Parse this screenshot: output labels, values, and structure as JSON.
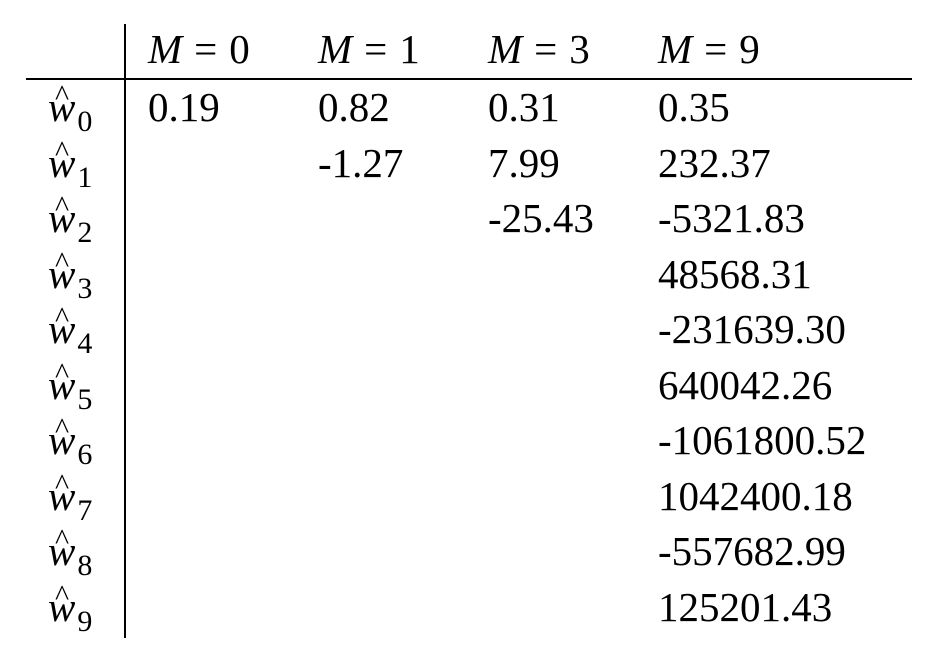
{
  "table": {
    "header": {
      "columns": [
        {
          "var": "M",
          "eq": "=",
          "value": "0"
        },
        {
          "var": "M",
          "eq": "=",
          "value": "1"
        },
        {
          "var": "M",
          "eq": "=",
          "value": "3"
        },
        {
          "var": "M",
          "eq": "=",
          "value": "9"
        }
      ]
    },
    "rows": [
      {
        "symbol": "w",
        "hat": "^",
        "sub": "0",
        "cells": [
          "0.19",
          "0.82",
          "0.31",
          "0.35"
        ]
      },
      {
        "symbol": "w",
        "hat": "^",
        "sub": "1",
        "cells": [
          "",
          "-1.27",
          "7.99",
          "232.37"
        ]
      },
      {
        "symbol": "w",
        "hat": "^",
        "sub": "2",
        "cells": [
          "",
          "",
          "-25.43",
          "-5321.83"
        ]
      },
      {
        "symbol": "w",
        "hat": "^",
        "sub": "3",
        "cells": [
          "",
          "",
          "",
          "48568.31"
        ]
      },
      {
        "symbol": "w",
        "hat": "^",
        "sub": "4",
        "cells": [
          "",
          "",
          "",
          "-231639.30"
        ]
      },
      {
        "symbol": "w",
        "hat": "^",
        "sub": "5",
        "cells": [
          "",
          "",
          "",
          "640042.26"
        ]
      },
      {
        "symbol": "w",
        "hat": "^",
        "sub": "6",
        "cells": [
          "",
          "",
          "",
          "-1061800.52"
        ]
      },
      {
        "symbol": "w",
        "hat": "^",
        "sub": "7",
        "cells": [
          "",
          "",
          "",
          "1042400.18"
        ]
      },
      {
        "symbol": "w",
        "hat": "^",
        "sub": "8",
        "cells": [
          "",
          "",
          "",
          "-557682.99"
        ]
      },
      {
        "symbol": "w",
        "hat": "^",
        "sub": "9",
        "cells": [
          "",
          "",
          "",
          "125201.43"
        ]
      }
    ]
  }
}
